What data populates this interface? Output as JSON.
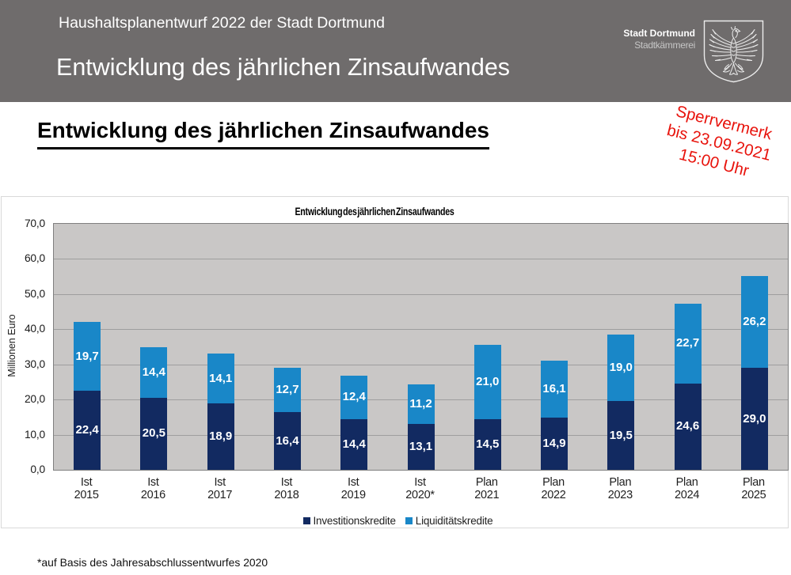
{
  "header": {
    "subtitle": "Haushaltsplanentwurf 2022 der Stadt Dortmund",
    "title": "Entwicklung des jährlichen Zinsaufwandes",
    "logo": {
      "line1": "Stadt Dortmund",
      "line2": "Stadtkämmerei"
    }
  },
  "stamp": {
    "lines": [
      "Sperrvermerk",
      "bis 23.09.2021",
      "15:00 Uhr"
    ],
    "color": "#e8130c"
  },
  "page_title": "Entwicklung des jährlichen Zinsaufwandes",
  "footnote": "*auf Basis des Jahresabschlussentwurfes 2020",
  "colors": {
    "header_band": "#6f6c6c",
    "plot_background": "#c9c7c6",
    "gridline": "#9e9e9e",
    "investitionskredite": "#122a61",
    "liquiditaetskredite": "#1987c8"
  },
  "chart_data": {
    "type": "bar",
    "stacked": true,
    "title": "Entwicklung des jährlichen Zinsaufwandes",
    "xlabel": "",
    "ylabel": "Millionen Euro",
    "ylim": [
      0,
      70
    ],
    "ytick_step": 10,
    "decimal_style": "comma",
    "grid": true,
    "legend_position": "bottom",
    "categories": [
      [
        "Ist",
        "2015"
      ],
      [
        "Ist",
        "2016"
      ],
      [
        "Ist",
        "2017"
      ],
      [
        "Ist",
        "2018"
      ],
      [
        "Ist",
        "2019"
      ],
      [
        "Ist",
        "2020*"
      ],
      [
        "Plan",
        "2021"
      ],
      [
        "Plan",
        "2022"
      ],
      [
        "Plan",
        "2023"
      ],
      [
        "Plan",
        "2024"
      ],
      [
        "Plan",
        "2025"
      ]
    ],
    "series": [
      {
        "name": "Investitionskredite",
        "color": "#122a61",
        "values": [
          22.4,
          20.5,
          18.9,
          16.4,
          14.4,
          13.1,
          14.5,
          14.9,
          19.5,
          24.6,
          29.0
        ]
      },
      {
        "name": "Liquiditätskredite",
        "color": "#1987c8",
        "values": [
          19.7,
          14.4,
          14.1,
          12.7,
          12.4,
          11.2,
          21.0,
          16.1,
          19.0,
          22.7,
          26.2
        ]
      }
    ]
  }
}
